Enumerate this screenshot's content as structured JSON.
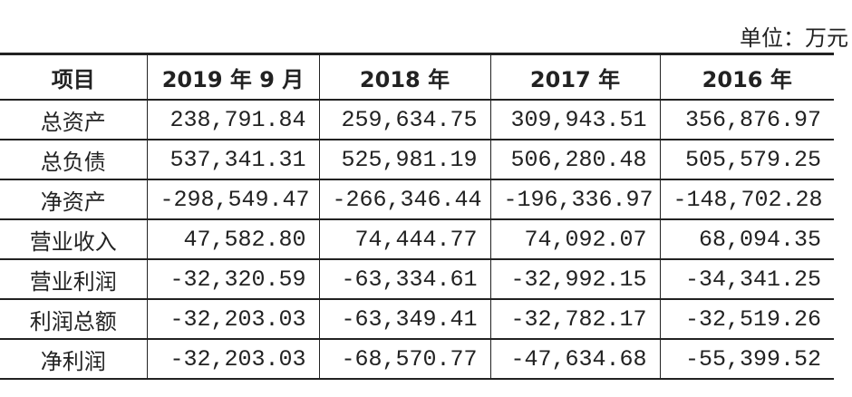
{
  "unit": "单位：万元",
  "table": {
    "headers": [
      "项目",
      "2019 年 9 月",
      "2018 年",
      "2017 年",
      "2016 年"
    ],
    "rows": [
      {
        "label": "总资产",
        "values": [
          "238,791.84",
          "259,634.75",
          "309,943.51",
          "356,876.97"
        ]
      },
      {
        "label": "总负债",
        "values": [
          "537,341.31",
          "525,981.19",
          "506,280.48",
          "505,579.25"
        ]
      },
      {
        "label": "净资产",
        "values": [
          "-298,549.47",
          "-266,346.44",
          "-196,336.97",
          "-148,702.28"
        ]
      },
      {
        "label": "营业收入",
        "values": [
          "47,582.80",
          "74,444.77",
          "74,092.07",
          "68,094.35"
        ]
      },
      {
        "label": "营业利润",
        "values": [
          "-32,320.59",
          "-63,334.61",
          "-32,992.15",
          "-34,341.25"
        ]
      },
      {
        "label": "利润总额",
        "values": [
          "-32,203.03",
          "-63,349.41",
          "-32,782.17",
          "-32,519.26"
        ]
      },
      {
        "label": "净利润",
        "values": [
          "-32,203.03",
          "-68,570.77",
          "-47,634.68",
          "-55,399.52"
        ]
      }
    ]
  }
}
